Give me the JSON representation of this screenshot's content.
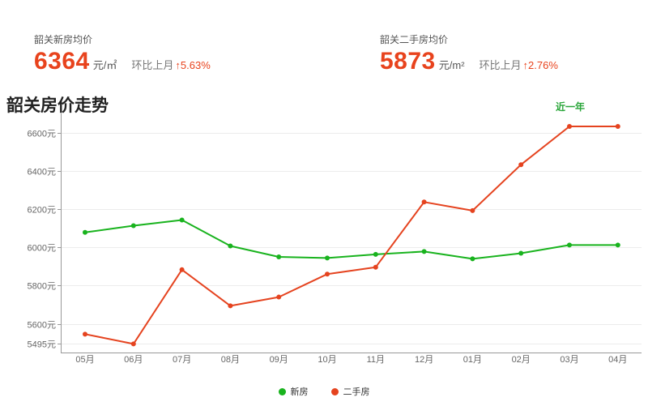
{
  "stats": {
    "new": {
      "label": "韶关新房均价",
      "price": "6364",
      "unit": "元/㎡",
      "change_label": "环比上月",
      "change_value": "↑5.63%"
    },
    "second": {
      "label": "韶关二手房均价",
      "price": "5873",
      "unit": "元/m²",
      "change_label": "环比上月",
      "change_value": "↑2.76%"
    }
  },
  "chart_title": "韶关房价走势",
  "range_tab": "近一年",
  "colors": {
    "new": "#19b31e",
    "second": "#e5431f",
    "accent_price": "#e8431d"
  },
  "chart_data": {
    "type": "line",
    "title": "韶关房价走势",
    "categories": [
      "05月",
      "06月",
      "07月",
      "08月",
      "09月",
      "10月",
      "11月",
      "12月",
      "01月",
      "02月",
      "03月",
      "04月"
    ],
    "series": [
      {
        "name": "新房",
        "color": "#19b31e",
        "values": [
          6078,
          6113,
          6143,
          6007,
          5950,
          5944,
          5963,
          5978,
          5940,
          5969,
          6012,
          6012
        ]
      },
      {
        "name": "二手房",
        "color": "#e5431f",
        "values": [
          5546,
          5495,
          5883,
          5694,
          5740,
          5860,
          5896,
          6237,
          6192,
          6432,
          6632,
          6632
        ]
      }
    ],
    "yticks": [
      {
        "value": 6600,
        "label": "6600元"
      },
      {
        "value": 6400,
        "label": "6400元"
      },
      {
        "value": 6200,
        "label": "6200元"
      },
      {
        "value": 6000,
        "label": "6000元"
      },
      {
        "value": 5800,
        "label": "5800元"
      },
      {
        "value": 5600,
        "label": "5600元"
      },
      {
        "value": 5495,
        "label": "5495元"
      }
    ],
    "ylim": [
      5450,
      6700
    ],
    "grid": true,
    "legend_position": "bottom-center"
  }
}
